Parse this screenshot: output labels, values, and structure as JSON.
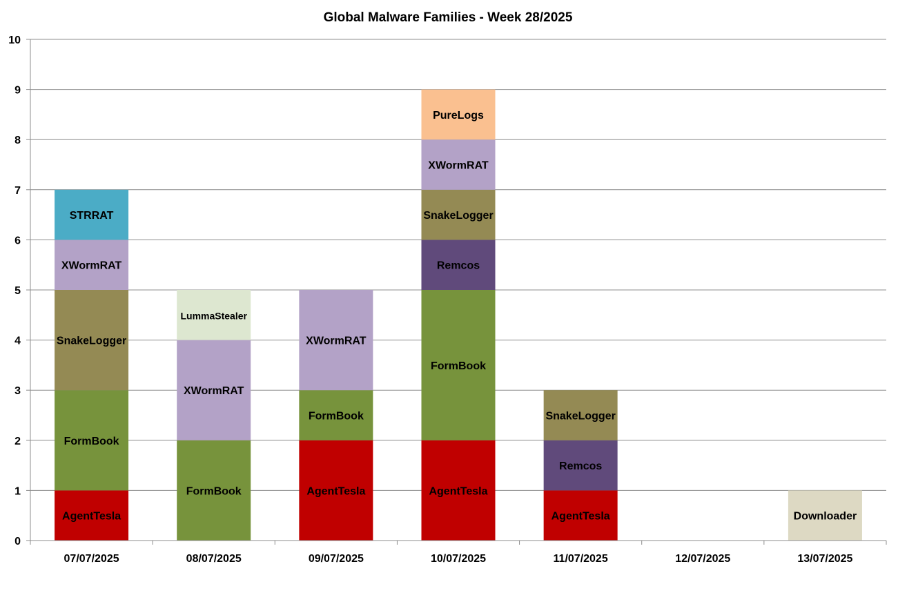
{
  "chart_data": {
    "type": "bar",
    "stacked": true,
    "title": "Global Malware Families - Week 28/2025",
    "xlabel": "",
    "ylabel": "",
    "ylim": [
      0,
      10
    ],
    "yticks": [
      "0",
      "1",
      "2",
      "3",
      "4",
      "5",
      "6",
      "7",
      "8",
      "9",
      "10"
    ],
    "grid": true,
    "legend": "none",
    "categories": [
      "07/07/2025",
      "08/07/2025",
      "09/07/2025",
      "10/07/2025",
      "11/07/2025",
      "12/07/2025",
      "13/07/2025"
    ],
    "colors": {
      "AgentTesla": "#c00000",
      "FormBook": "#77933c",
      "SnakeLogger": "#948a54",
      "XWormRAT": "#b3a2c7",
      "STRRAT": "#4bacc6",
      "LummaStealer": "#dde7d0",
      "Remcos": "#604a7b",
      "PureLogs": "#fac090",
      "Downloader": "#ddd9c3"
    },
    "series": [
      {
        "name": "AgentTesla",
        "values": [
          1,
          0,
          2,
          2,
          1,
          0,
          0
        ]
      },
      {
        "name": "FormBook",
        "values": [
          2,
          2,
          1,
          3,
          0,
          0,
          0
        ]
      },
      {
        "name": "Remcos",
        "values": [
          0,
          0,
          0,
          1,
          1,
          0,
          0
        ]
      },
      {
        "name": "SnakeLogger",
        "values": [
          2,
          0,
          0,
          1,
          1,
          0,
          0
        ]
      },
      {
        "name": "XWormRAT",
        "values": [
          1,
          2,
          2,
          1,
          0,
          0,
          0
        ]
      },
      {
        "name": "LummaStealer",
        "values": [
          0,
          1,
          0,
          0,
          0,
          0,
          0
        ]
      },
      {
        "name": "STRRAT",
        "values": [
          1,
          0,
          0,
          0,
          0,
          0,
          0
        ]
      },
      {
        "name": "PureLogs",
        "values": [
          0,
          0,
          0,
          1,
          0,
          0,
          0
        ]
      },
      {
        "name": "Downloader",
        "values": [
          0,
          0,
          0,
          0,
          0,
          0,
          1
        ]
      }
    ]
  }
}
